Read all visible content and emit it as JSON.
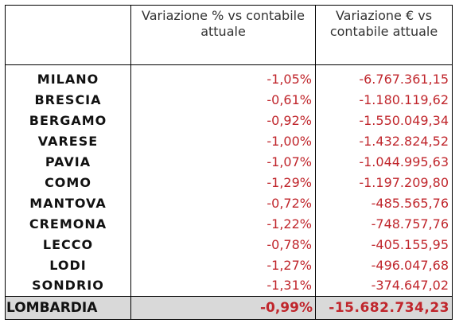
{
  "table": {
    "header": {
      "col_pct": "Variazione % vs contabile attuale",
      "col_eur": "Variazione € vs contabile attuale"
    },
    "rows": [
      {
        "name": "MILANO",
        "pct": "-1,05%",
        "eur": "-6.767.361,15"
      },
      {
        "name": "BRESCIA",
        "pct": "-0,61%",
        "eur": "-1.180.119,62"
      },
      {
        "name": "BERGAMO",
        "pct": "-0,92%",
        "eur": "-1.550.049,34"
      },
      {
        "name": "VARESE",
        "pct": "-1,00%",
        "eur": "-1.432.824,52"
      },
      {
        "name": "PAVIA",
        "pct": "-1,07%",
        "eur": "-1.044.995,63"
      },
      {
        "name": "COMO",
        "pct": "-1,29%",
        "eur": "-1.197.209,80"
      },
      {
        "name": "MANTOVA",
        "pct": "-0,72%",
        "eur": "-485.565,76"
      },
      {
        "name": "CREMONA",
        "pct": "-1,22%",
        "eur": "-748.757,76"
      },
      {
        "name": "LECCO",
        "pct": "-0,78%",
        "eur": "-405.155,95"
      },
      {
        "name": "LODI",
        "pct": "-1,27%",
        "eur": "-496.047,68"
      },
      {
        "name": "SONDRIO",
        "pct": "-1,31%",
        "eur": "-374.647,02"
      }
    ],
    "total": {
      "name": "LOMBARDIA",
      "pct": "-0,99%",
      "eur": "-15.682.734,23"
    }
  },
  "colors": {
    "negative_value": "#c0262c",
    "total_background": "#d9d9d9",
    "border": "#000000"
  }
}
